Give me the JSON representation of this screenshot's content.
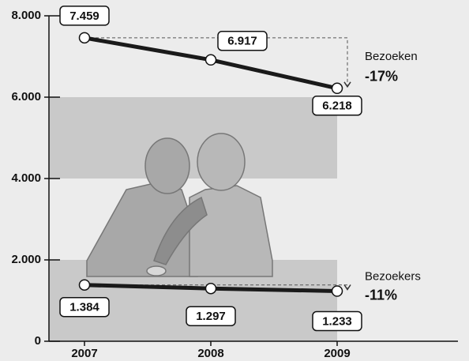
{
  "chart_data": {
    "type": "line",
    "categories": [
      "2007",
      "2008",
      "2009"
    ],
    "series": [
      {
        "name": "Bezoeken",
        "annotation": "-17%",
        "color": "#1a1a1a",
        "values": [
          7459,
          6917,
          6218
        ],
        "value_labels": [
          "7.459",
          "6.917",
          "6.218"
        ]
      },
      {
        "name": "Bezoekers",
        "annotation": "-11%",
        "color": "#1a1a1a",
        "values": [
          1384,
          1297,
          1233
        ],
        "value_labels": [
          "1.384",
          "1.297",
          "1.233"
        ]
      }
    ],
    "ylim": [
      0,
      8000
    ],
    "yticks": [
      0,
      {
        "value": 2000,
        "label": "2.000"
      },
      {
        "value": 4000,
        "label": "4.000"
      },
      {
        "value": 6000,
        "label": "6.000"
      },
      {
        "value": 8000,
        "label": "8.000"
      }
    ],
    "band_color": "#c9c9c9",
    "background": "#ececec"
  }
}
